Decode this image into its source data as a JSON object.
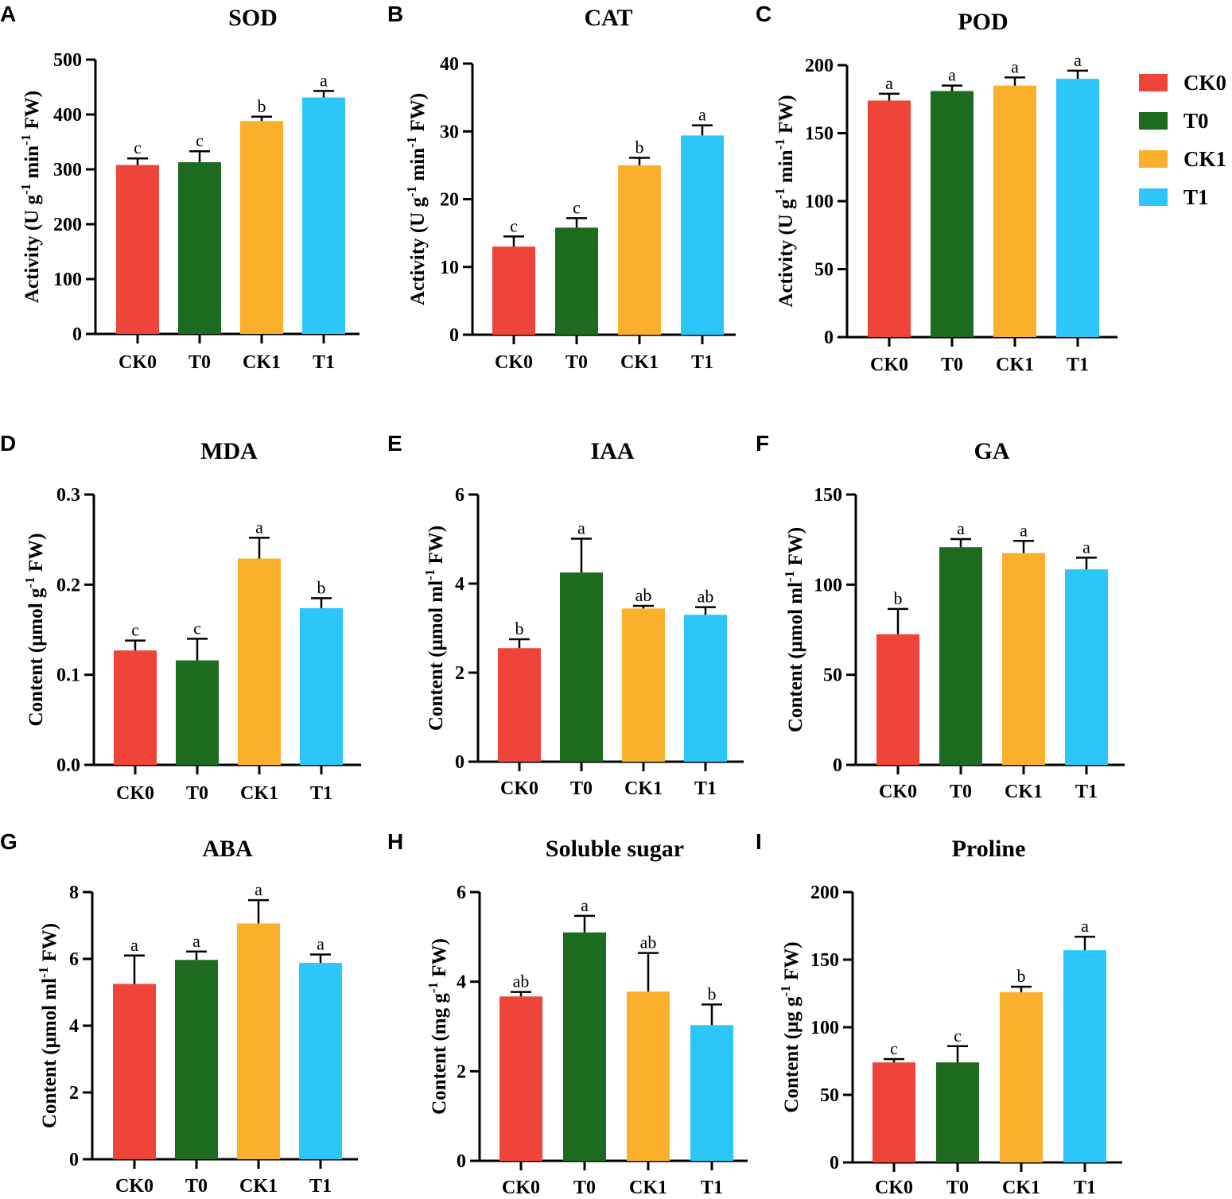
{
  "legend": [
    {
      "label": "CK0",
      "color": "#EF443A"
    },
    {
      "label": "T0",
      "color": "#1D6B1E"
    },
    {
      "label": "CK1",
      "color": "#FBB02B"
    },
    {
      "label": "T1",
      "color": "#2CC6F8"
    }
  ],
  "chart_data": [
    {
      "type": "bar",
      "panel": "A",
      "title": "SOD",
      "ylabel": "Activity (U g",
      "ylabel_sup1": "-1",
      "ylabel_mid": " min",
      "ylabel_sup2": "-1",
      "ylabel_end": " FW)",
      "categories": [
        "CK0",
        "T0",
        "CK1",
        "T1"
      ],
      "values": [
        308,
        313,
        388,
        431
      ],
      "errors": [
        12,
        20,
        8,
        12
      ],
      "significance": [
        "c",
        "c",
        "b",
        "a"
      ],
      "ylim": [
        0,
        500
      ],
      "yticks": [
        "0",
        "100",
        "200",
        "300",
        "400",
        "500"
      ]
    },
    {
      "type": "bar",
      "panel": "B",
      "title": "CAT",
      "ylabel": "Activity (U g",
      "ylabel_sup1": "-1",
      "ylabel_mid": " min",
      "ylabel_sup2": "-1",
      "ylabel_end": " FW)",
      "categories": [
        "CK0",
        "T0",
        "CK1",
        "T1"
      ],
      "values": [
        13.0,
        15.8,
        25.0,
        29.4
      ],
      "errors": [
        1.5,
        1.4,
        1.1,
        1.5
      ],
      "significance": [
        "c",
        "c",
        "b",
        "a"
      ],
      "ylim": [
        0,
        40
      ],
      "yticks": [
        "0",
        "10",
        "20",
        "30",
        "40"
      ]
    },
    {
      "type": "bar",
      "panel": "C",
      "title": "POD",
      "ylabel": "Activity (U g",
      "ylabel_sup1": "-1",
      "ylabel_mid": " min",
      "ylabel_sup2": "-1",
      "ylabel_end": " FW)",
      "categories": [
        "CK0",
        "T0",
        "CK1",
        "T1"
      ],
      "values": [
        174,
        181,
        185,
        190
      ],
      "errors": [
        5,
        4,
        6,
        6
      ],
      "significance": [
        "a",
        "a",
        "a",
        "a"
      ],
      "ylim": [
        0,
        200
      ],
      "yticks": [
        "0",
        "50",
        "100",
        "150",
        "200"
      ]
    },
    {
      "type": "bar",
      "panel": "D",
      "title": "MDA",
      "ylabel": "Content  (μmol g",
      "ylabel_sup1": "-1",
      "ylabel_mid": " FW)",
      "ylabel_sup2": "",
      "ylabel_end": "",
      "categories": [
        "CK0",
        "T0",
        "CK1",
        "T1"
      ],
      "values": [
        0.127,
        0.116,
        0.229,
        0.174
      ],
      "errors": [
        0.011,
        0.024,
        0.023,
        0.011
      ],
      "significance": [
        "c",
        "c",
        "a",
        "b"
      ],
      "ylim": [
        0,
        0.3
      ],
      "yticks": [
        "0.0",
        "0.1",
        "0.2",
        "0.3"
      ]
    },
    {
      "type": "bar",
      "panel": "E",
      "title": "IAA",
      "ylabel": "Content (μmol ml",
      "ylabel_sup1": "-1",
      "ylabel_mid": " FW)",
      "ylabel_sup2": "",
      "ylabel_end": "",
      "categories": [
        "CK0",
        "T0",
        "CK1",
        "T1"
      ],
      "values": [
        2.55,
        4.25,
        3.44,
        3.3
      ],
      "errors": [
        0.2,
        0.76,
        0.06,
        0.17
      ],
      "significance": [
        "b",
        "a",
        "ab",
        "ab"
      ],
      "ylim": [
        0,
        6
      ],
      "yticks": [
        "0",
        "2",
        "4",
        "6"
      ]
    },
    {
      "type": "bar",
      "panel": "F",
      "title": "GA",
      "ylabel": "Content (μmol ml",
      "ylabel_sup1": "-1",
      "ylabel_mid": " FW)",
      "ylabel_sup2": "",
      "ylabel_end": "",
      "categories": [
        "CK0",
        "T0",
        "CK1",
        "T1"
      ],
      "values": [
        72.5,
        120.8,
        117.5,
        108.5
      ],
      "errors": [
        14,
        4.5,
        6.8,
        6.5
      ],
      "significance": [
        "b",
        "a",
        "a",
        "a"
      ],
      "ylim": [
        0,
        150
      ],
      "yticks": [
        "0",
        "50",
        "100",
        "150"
      ]
    },
    {
      "type": "bar",
      "panel": "G",
      "title": "ABA",
      "ylabel": "Content (μmol ml",
      "ylabel_sup1": "-1",
      "ylabel_mid": " FW)",
      "ylabel_sup2": "",
      "ylabel_end": "",
      "categories": [
        "CK0",
        "T0",
        "CK1",
        "T1"
      ],
      "values": [
        5.25,
        5.97,
        7.06,
        5.88
      ],
      "errors": [
        0.85,
        0.25,
        0.7,
        0.25
      ],
      "significance": [
        "a",
        "a",
        "a",
        "a"
      ],
      "ylim": [
        0,
        8
      ],
      "yticks": [
        "0",
        "2",
        "4",
        "6",
        "8"
      ]
    },
    {
      "type": "bar",
      "panel": "H",
      "title": "Soluble sugar",
      "ylabel": "Content (mg g",
      "ylabel_sup1": "-1",
      "ylabel_mid": " FW)",
      "ylabel_sup2": "",
      "ylabel_end": "",
      "categories": [
        "CK0",
        "T0",
        "CK1",
        "T1"
      ],
      "values": [
        3.67,
        5.1,
        3.78,
        3.03
      ],
      "errors": [
        0.1,
        0.37,
        0.86,
        0.46
      ],
      "significance": [
        "ab",
        "a",
        "ab",
        "b"
      ],
      "ylim": [
        0,
        6
      ],
      "yticks": [
        "0",
        "2",
        "4",
        "6"
      ]
    },
    {
      "type": "bar",
      "panel": "I",
      "title": "Proline",
      "ylabel": "Content (μg g",
      "ylabel_sup1": "-1",
      "ylabel_mid": " FW)",
      "ylabel_sup2": "",
      "ylabel_end": "",
      "categories": [
        "CK0",
        "T0",
        "CK1",
        "T1"
      ],
      "values": [
        74,
        74,
        126,
        157
      ],
      "errors": [
        2.5,
        12,
        4,
        10
      ],
      "significance": [
        "c",
        "c",
        "b",
        "a"
      ],
      "ylim": [
        0,
        200
      ],
      "yticks": [
        "0",
        "50",
        "100",
        "150",
        "200"
      ]
    }
  ]
}
